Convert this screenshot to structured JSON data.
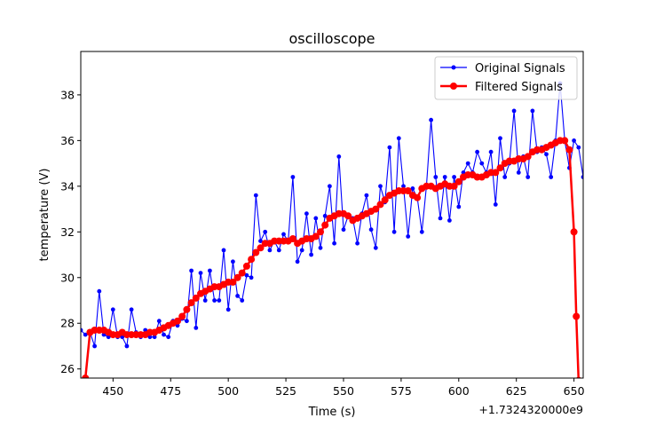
{
  "chart_data": {
    "type": "line",
    "title": "oscilloscope",
    "xlabel": "Time (s)",
    "ylabel": "temperature (V)",
    "x_offset_label": "+1.7324320000e9",
    "xlim": [
      436,
      654
    ],
    "ylim": [
      25.6,
      39.9
    ],
    "x_ticks": [
      450,
      475,
      500,
      525,
      550,
      575,
      600,
      625,
      650
    ],
    "y_ticks": [
      26,
      28,
      30,
      32,
      34,
      36,
      38
    ],
    "grid": false,
    "legend_position": "upper right",
    "series": [
      {
        "name": "Original Signals",
        "color": "#0000ff",
        "marker": "dot-small",
        "x": [
          436,
          438,
          440,
          442,
          444,
          446,
          448,
          450,
          452,
          454,
          456,
          458,
          460,
          462,
          464,
          466,
          468,
          470,
          472,
          474,
          476,
          478,
          480,
          482,
          484,
          486,
          488,
          490,
          492,
          494,
          496,
          498,
          500,
          502,
          504,
          506,
          508,
          510,
          512,
          514,
          516,
          518,
          520,
          522,
          524,
          526,
          528,
          530,
          532,
          534,
          536,
          538,
          540,
          542,
          544,
          546,
          548,
          550,
          552,
          554,
          556,
          558,
          560,
          562,
          564,
          566,
          568,
          570,
          572,
          574,
          576,
          578,
          580,
          582,
          584,
          586,
          588,
          590,
          592,
          594,
          596,
          598,
          600,
          602,
          604,
          606,
          608,
          610,
          612,
          614,
          616,
          618,
          620,
          622,
          624,
          626,
          628,
          630,
          632,
          634,
          636,
          638,
          640,
          642,
          644,
          646,
          648,
          650,
          652,
          654
        ],
        "y": [
          27.7,
          27.5,
          27.6,
          27.0,
          29.4,
          27.5,
          27.4,
          28.6,
          27.4,
          27.4,
          27.0,
          28.6,
          27.6,
          27.4,
          27.7,
          27.4,
          27.4,
          28.1,
          27.5,
          27.4,
          28.1,
          27.9,
          28.2,
          28.1,
          30.3,
          27.8,
          30.2,
          29.0,
          30.3,
          29.0,
          29.0,
          31.2,
          28.6,
          30.7,
          29.2,
          29.0,
          30.1,
          30.0,
          33.6,
          31.6,
          32.0,
          31.2,
          31.6,
          31.2,
          31.9,
          31.6,
          34.4,
          30.7,
          31.2,
          32.8,
          31.0,
          32.6,
          31.3,
          32.7,
          34.0,
          31.5,
          35.3,
          32.1,
          32.7,
          32.6,
          31.5,
          32.8,
          33.6,
          32.1,
          31.3,
          34.0,
          33.3,
          35.7,
          32.0,
          36.1,
          34.0,
          31.8,
          33.9,
          33.5,
          32.0,
          34.0,
          36.9,
          34.4,
          32.6,
          34.4,
          32.5,
          34.4,
          33.1,
          34.6,
          35.0,
          34.6,
          35.5,
          35.0,
          34.6,
          35.5,
          33.2,
          36.1,
          34.4,
          35.0,
          37.3,
          34.6,
          35.3,
          34.4,
          37.3,
          35.5,
          35.7,
          35.4,
          34.4,
          36.0,
          38.5,
          36.0,
          34.8,
          36.0,
          35.7,
          34.4
        ]
      },
      {
        "name": "Filtered Signals",
        "color": "#ff0000",
        "marker": "dot-large",
        "x": [
          436,
          438,
          440,
          442,
          444,
          446,
          448,
          450,
          452,
          454,
          456,
          458,
          460,
          462,
          464,
          466,
          468,
          470,
          472,
          474,
          476,
          478,
          480,
          482,
          484,
          486,
          488,
          490,
          492,
          494,
          496,
          498,
          500,
          502,
          504,
          506,
          508,
          510,
          512,
          514,
          516,
          518,
          520,
          522,
          524,
          526,
          528,
          530,
          532,
          534,
          536,
          538,
          540,
          542,
          544,
          546,
          548,
          550,
          552,
          554,
          556,
          558,
          560,
          562,
          564,
          566,
          568,
          570,
          572,
          574,
          576,
          578,
          580,
          582,
          584,
          586,
          588,
          590,
          592,
          594,
          596,
          598,
          600,
          602,
          604,
          606,
          608,
          610,
          612,
          614,
          616,
          618,
          620,
          622,
          624,
          626,
          628,
          630,
          632,
          634,
          636,
          638,
          640,
          642,
          644,
          646,
          648,
          650,
          651,
          652,
          653
        ],
        "y": [
          25.0,
          25.6,
          27.6,
          27.7,
          27.7,
          27.7,
          27.6,
          27.5,
          27.5,
          27.6,
          27.5,
          27.5,
          27.5,
          27.5,
          27.5,
          27.6,
          27.6,
          27.7,
          27.8,
          27.9,
          28.0,
          28.1,
          28.3,
          28.6,
          28.9,
          29.1,
          29.3,
          29.4,
          29.5,
          29.6,
          29.6,
          29.7,
          29.8,
          29.8,
          30.0,
          30.2,
          30.5,
          30.8,
          31.1,
          31.3,
          31.5,
          31.5,
          31.6,
          31.6,
          31.6,
          31.6,
          31.7,
          31.5,
          31.6,
          31.7,
          31.7,
          31.8,
          32.0,
          32.3,
          32.6,
          32.7,
          32.8,
          32.8,
          32.7,
          32.5,
          32.6,
          32.7,
          32.8,
          32.9,
          33.0,
          33.2,
          33.4,
          33.6,
          33.7,
          33.8,
          33.8,
          33.8,
          33.6,
          33.5,
          33.9,
          34.0,
          34.0,
          33.9,
          34.0,
          34.1,
          34.0,
          34.0,
          34.2,
          34.4,
          34.5,
          34.5,
          34.4,
          34.4,
          34.5,
          34.6,
          34.6,
          34.8,
          35.0,
          35.1,
          35.1,
          35.2,
          35.2,
          35.3,
          35.5,
          35.6,
          35.6,
          35.7,
          35.8,
          35.9,
          36.0,
          36.0,
          35.6,
          32.0,
          28.3,
          25.5,
          25.0
        ]
      }
    ]
  }
}
